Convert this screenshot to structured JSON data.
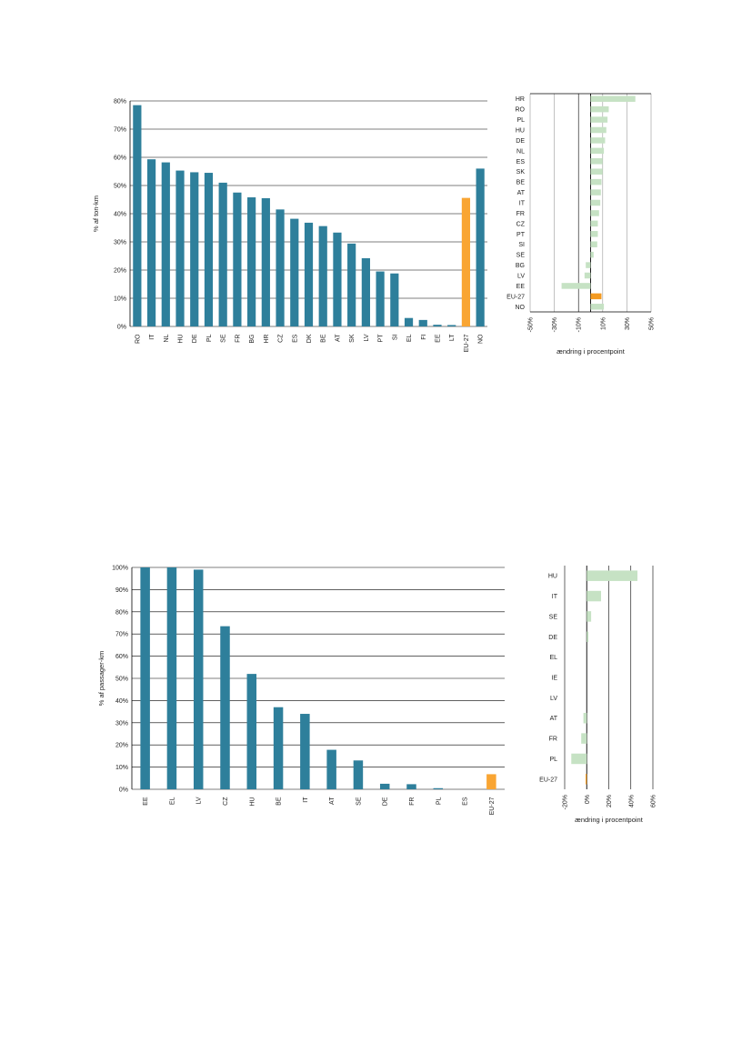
{
  "colors": {
    "bar": "#2e7f9b",
    "highlight": "#f9a533",
    "change": "#c6e2c4",
    "change_highlight": "#f39a21",
    "grid": "#000000",
    "grid_light": "#999999"
  },
  "chart_data": [
    {
      "type": "bar",
      "categories": [
        "RO",
        "IT",
        "NL",
        "HU",
        "DE",
        "PL",
        "SE",
        "FR",
        "BG",
        "HR",
        "CZ",
        "ES",
        "DK",
        "BE",
        "AT",
        "SK",
        "LV",
        "PT",
        "SI",
        "EL",
        "FI",
        "EE",
        "LT",
        "EU-27",
        "NO"
      ],
      "values": [
        78.5,
        59.3,
        58.2,
        55.3,
        54.7,
        54.5,
        51,
        47.5,
        45.8,
        45.5,
        41.5,
        38.2,
        36.8,
        35.6,
        33.3,
        29.4,
        24.2,
        19.5,
        18.8,
        3,
        2.3,
        0.6,
        0.5,
        45.6,
        56
      ],
      "highlight": [
        "EU-27"
      ],
      "ylabel": "% af ton-km",
      "ylim": [
        0,
        80
      ],
      "yticks": [
        "0%",
        "10%",
        "20%",
        "30%",
        "40%",
        "50%",
        "60%",
        "70%",
        "80%"
      ],
      "grid": true
    },
    {
      "type": "bar",
      "orientation": "horizontal",
      "categories": [
        "HR",
        "RO",
        "PL",
        "HU",
        "DE",
        "NL",
        "ES",
        "SK",
        "BE",
        "AT",
        "IT",
        "FR",
        "CZ",
        "PT",
        "SI",
        "SE",
        "BG",
        "LV",
        "EE",
        "EU-27",
        "NO"
      ],
      "values": [
        37,
        15,
        14,
        13,
        12,
        11,
        10,
        10,
        9,
        8.5,
        8,
        7,
        6,
        6,
        5.5,
        2.5,
        -4,
        -5,
        -24,
        9,
        11
      ],
      "highlight": [
        "EU-27"
      ],
      "xlabel": "ændring i procentpoint",
      "xlim": [
        -50,
        50
      ],
      "xticks": [
        "-50%",
        "-30%",
        "-10%",
        "10%",
        "30%",
        "50%"
      ],
      "grid": true
    },
    {
      "type": "bar",
      "categories": [
        "EE",
        "EL",
        "LV",
        "CZ",
        "HU",
        "BE",
        "IT",
        "AT",
        "SE",
        "DE",
        "FR",
        "PL",
        "ES",
        "EU-27"
      ],
      "values": [
        100,
        100,
        99,
        73.5,
        52,
        37,
        34,
        17.8,
        13,
        2.5,
        2.3,
        0.5,
        0,
        6.8
      ],
      "highlight": [
        "EU-27"
      ],
      "ylabel": "% af passager-km",
      "ylim": [
        0,
        100
      ],
      "yticks": [
        "0%",
        "10%",
        "20%",
        "30%",
        "40%",
        "50%",
        "60%",
        "70%",
        "80%",
        "90%",
        "100%"
      ],
      "grid": true
    },
    {
      "type": "bar",
      "orientation": "horizontal",
      "categories": [
        "HU",
        "IT",
        "SE",
        "DE",
        "EL",
        "IE",
        "LV",
        "AT",
        "FR",
        "PL",
        "EU-27"
      ],
      "values": [
        46,
        13,
        4,
        1.5,
        0,
        0,
        0,
        -3,
        -5,
        -14,
        -1
      ],
      "highlight": [
        "EU-27"
      ],
      "xlabel": "ændring i procentpoint",
      "xlim": [
        -20,
        60
      ],
      "xticks": [
        "-20%",
        "0%",
        "20%",
        "40%",
        "60%"
      ],
      "grid": true
    }
  ]
}
